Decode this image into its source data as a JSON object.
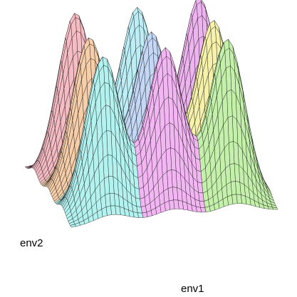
{
  "chart_data": {
    "type": "surface",
    "x_label": "env1",
    "y_label": "env2",
    "xlim": [
      0,
      1
    ],
    "ylim": [
      0,
      1
    ],
    "zlim": [
      0,
      1
    ],
    "peaks": [
      {
        "x": 0.2,
        "y": 0.8,
        "height": 0.97,
        "color": "#f6bcc4"
      },
      {
        "x": 0.2,
        "y": 0.5,
        "height": 0.93,
        "color": "#f7ceaa"
      },
      {
        "x": 0.2,
        "y": 0.2,
        "height": 0.93,
        "color": "#b4f2f0"
      },
      {
        "x": 0.5,
        "y": 0.8,
        "height": 0.97,
        "color": "#bdeef6"
      },
      {
        "x": 0.5,
        "y": 0.5,
        "height": 0.93,
        "color": "#c4d8f6"
      },
      {
        "x": 0.5,
        "y": 0.2,
        "height": 0.95,
        "color": "#f2b6f2"
      },
      {
        "x": 0.8,
        "y": 0.8,
        "height": 1.0,
        "color": "#eeb4f0"
      },
      {
        "x": 0.8,
        "y": 0.5,
        "height": 0.97,
        "color": "#f6f2ac"
      },
      {
        "x": 0.8,
        "y": 0.2,
        "height": 0.97,
        "color": "#c4f0ac"
      }
    ]
  }
}
